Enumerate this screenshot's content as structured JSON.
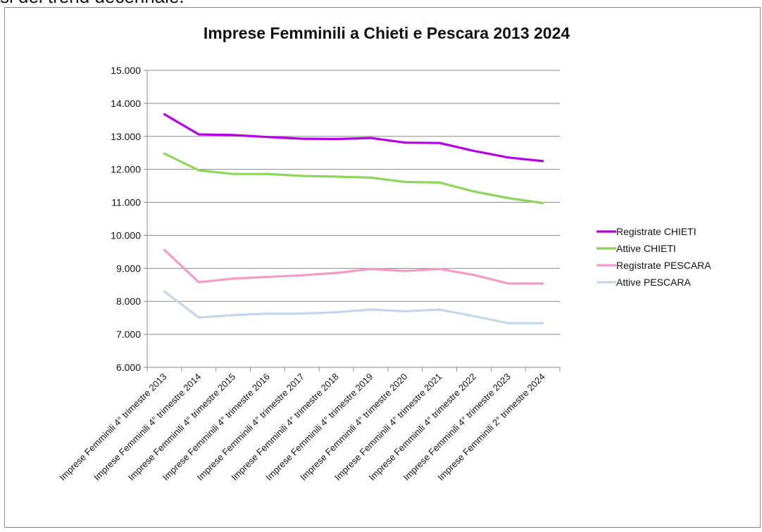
{
  "top_text": "si del trend decennale.",
  "chart_data": {
    "type": "line",
    "title": "Imprese Femminili a Chieti e Pescara 2013 2024",
    "xlabel": "",
    "ylabel": "",
    "ylim": [
      6000,
      15000
    ],
    "yticks": [
      6000,
      7000,
      8000,
      9000,
      10000,
      11000,
      12000,
      13000,
      14000,
      15000
    ],
    "ytick_labels": [
      "6.000",
      "7.000",
      "8.000",
      "9.000",
      "10.000",
      "11.000",
      "12.000",
      "13.000",
      "14.000",
      "15.000"
    ],
    "grid": "horizontal",
    "legend_position": "right",
    "categories": [
      "Imprese Femminili 4° trimestre 2013",
      "Imprese Femminili 4° trimestre 2014",
      "Imprese Femminili 4° trimestre 2015",
      "Imprese Femminili 4° trimestre 2016",
      "Imprese Femminili 4° trimestre 2017",
      "Imprese Femminili 4° trimestre 2018",
      "Imprese Femminili 4° trimestre 2019",
      "Imprese Femminili 4° trimestre 2020",
      "Imprese Femminili 4° trimestre 2021",
      "Imprese Femminili 4° trimestre 2022",
      "Imprese Femminili 4° trimestre 2023",
      "Imprese Femminili 2° trimestre 2024"
    ],
    "series": [
      {
        "name": "Registrate CHIETI",
        "color": "#b400e6",
        "values": [
          13670,
          13060,
          13040,
          12980,
          12930,
          12920,
          12950,
          12810,
          12800,
          12560,
          12360,
          12250
        ]
      },
      {
        "name": "Attive CHIETI",
        "color": "#8dd65a",
        "values": [
          12480,
          11970,
          11860,
          11860,
          11800,
          11780,
          11750,
          11620,
          11600,
          11330,
          11130,
          10980
        ]
      },
      {
        "name": "Registrate PESCARA",
        "color": "#f79ac6",
        "values": [
          9560,
          8580,
          8690,
          8740,
          8790,
          8860,
          8980,
          8920,
          8980,
          8800,
          8540,
          8540
        ]
      },
      {
        "name": "Attive PESCARA",
        "color": "#c4d6ec",
        "values": [
          8300,
          7510,
          7580,
          7630,
          7630,
          7670,
          7750,
          7700,
          7750,
          7550,
          7340,
          7340
        ]
      }
    ]
  }
}
